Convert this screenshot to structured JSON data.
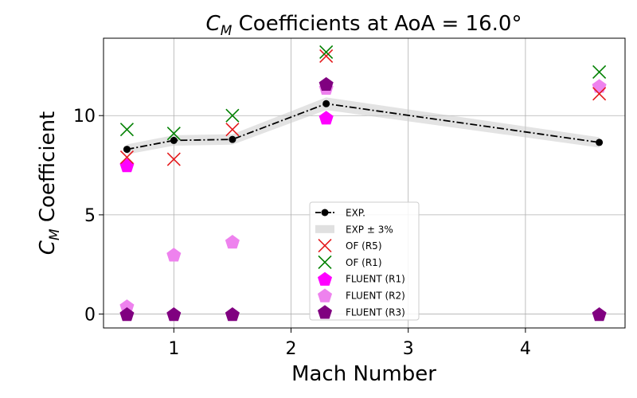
{
  "chart_data": {
    "type": "scatter",
    "title_symbol": "C",
    "title_subscript": "M",
    "title_rest": " Coefficients at AoA = 16.0°",
    "xlabel": "Mach Number",
    "ylabel_symbol": "C",
    "ylabel_subscript": "M",
    "ylabel_rest": " Coefficient",
    "xlim": [
      0.4,
      4.85
    ],
    "ylim": [
      -0.7,
      13.9
    ],
    "xticks": [
      1,
      2,
      3,
      4
    ],
    "yticks": [
      0,
      5,
      10
    ],
    "grid": true,
    "legend_position": "lower-center",
    "band": {
      "name": "EXP ± 3%",
      "pct": 3,
      "color": "#cccccc"
    },
    "series": [
      {
        "name": "EXP.",
        "style": "line-dashdot-dot",
        "color": "#000000",
        "x": [
          0.6,
          1.0,
          1.5,
          2.3,
          4.63
        ],
        "y": [
          8.3,
          8.75,
          8.8,
          10.6,
          8.65
        ]
      },
      {
        "name": "OF (R5)",
        "style": "x",
        "color": "#e41a1c",
        "x": [
          0.6,
          1.0,
          1.5,
          2.3,
          4.63
        ],
        "y": [
          7.9,
          7.8,
          9.3,
          13.0,
          11.1
        ]
      },
      {
        "name": "OF (R1)",
        "style": "x",
        "color": "#008000",
        "x": [
          0.6,
          1.0,
          1.5,
          2.3,
          4.63
        ],
        "y": [
          9.3,
          9.1,
          10.0,
          13.2,
          12.2
        ]
      },
      {
        "name": "FLUENT (R1)",
        "style": "pentagon",
        "color": "#ff00ff",
        "x": [
          0.6,
          2.3
        ],
        "y": [
          7.5,
          9.9
        ]
      },
      {
        "name": "FLUENT (R2)",
        "style": "pentagon",
        "color": "#ee82ee",
        "x": [
          0.6,
          1.0,
          1.5,
          2.3,
          4.63
        ],
        "y": [
          0.4,
          3.0,
          3.65,
          11.4,
          11.5
        ]
      },
      {
        "name": "FLUENT (R3)",
        "style": "pentagon",
        "color": "#800080",
        "x": [
          0.6,
          1.0,
          1.5,
          2.3,
          4.63
        ],
        "y": [
          0.0,
          0.0,
          0.0,
          11.6,
          0.0
        ]
      }
    ]
  }
}
